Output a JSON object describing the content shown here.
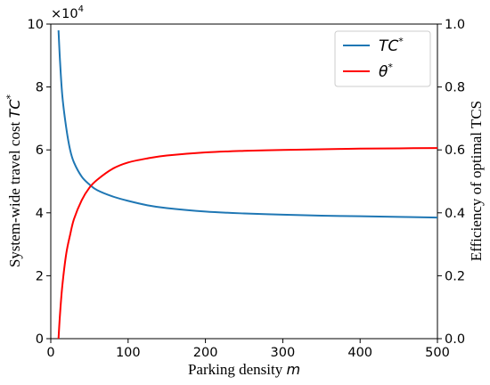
{
  "chart_data": {
    "type": "line",
    "xlabel": {
      "text": "Parking density ",
      "var": "m"
    },
    "ylabel_left": {
      "text": "System-wide travel cost ",
      "var": "TC",
      "sup": "*"
    },
    "ylabel_right": "Efficiency of optimal TCS",
    "xlim": [
      0,
      500
    ],
    "ylim_left": [
      0,
      10
    ],
    "ylim_right": [
      0,
      1.0
    ],
    "x_ticks": [
      "0",
      "100",
      "200",
      "300",
      "400",
      "500"
    ],
    "y_left_ticks": [
      "0",
      "2",
      "4",
      "6",
      "8",
      "10"
    ],
    "y_right_ticks": [
      "0.0",
      "0.2",
      "0.4",
      "0.6",
      "0.8",
      "1.0"
    ],
    "y_left_multiplier": {
      "base": "×10",
      "exp": "4"
    },
    "legend_position": "top-right",
    "grid": false,
    "series": [
      {
        "name": "TC",
        "name_sup": "*",
        "axis": "left",
        "color": "#1f77b4",
        "x": [
          10,
          12,
          15,
          20,
          25,
          30,
          40,
          50,
          60,
          80,
          100,
          125,
          150,
          200,
          250,
          300,
          350,
          400,
          450,
          500
        ],
        "y": [
          9.8,
          8.8,
          7.7,
          6.7,
          6.0,
          5.6,
          5.15,
          4.9,
          4.72,
          4.52,
          4.38,
          4.24,
          4.15,
          4.04,
          3.98,
          3.94,
          3.91,
          3.89,
          3.87,
          3.85
        ]
      },
      {
        "name": "θ",
        "name_sup": "*",
        "axis": "right",
        "color": "#ff0000",
        "x": [
          10,
          12,
          15,
          20,
          25,
          30,
          40,
          50,
          60,
          80,
          100,
          125,
          150,
          200,
          250,
          300,
          350,
          400,
          450,
          500
        ],
        "y": [
          0.0,
          0.08,
          0.17,
          0.27,
          0.33,
          0.38,
          0.44,
          0.48,
          0.505,
          0.54,
          0.56,
          0.573,
          0.582,
          0.592,
          0.597,
          0.6,
          0.602,
          0.604,
          0.605,
          0.606
        ]
      }
    ]
  }
}
